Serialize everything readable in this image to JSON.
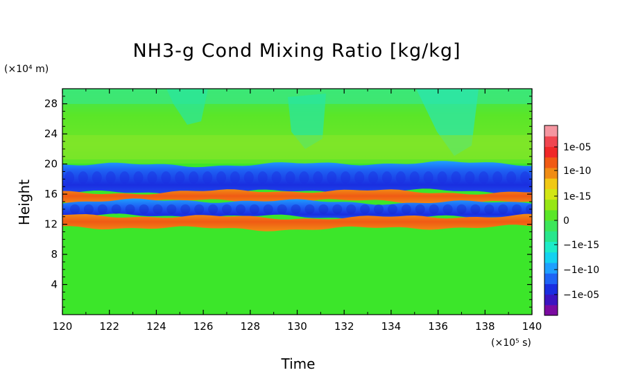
{
  "chart_data": {
    "type": "heatmap",
    "title": "NH3-g Cond Mixing Ratio [kg/kg]",
    "xlabel": "Time",
    "ylabel": "Height",
    "x_unit": "(×10⁵ s)",
    "y_unit": "(×10⁴ m)",
    "xlim": [
      120,
      140
    ],
    "ylim": [
      0,
      30
    ],
    "xticks": [
      120,
      122,
      124,
      126,
      128,
      130,
      132,
      134,
      136,
      138,
      140
    ],
    "yticks": [
      4,
      8,
      12,
      16,
      20,
      24,
      28
    ],
    "colorbar": {
      "labels": [
        "1e-05",
        "1e-10",
        "1e-15",
        "0",
        "−1e-15",
        "−1e-10",
        "−1e-05"
      ],
      "colors": [
        "#7a0aa0",
        "#3c14c0",
        "#1a2ee0",
        "#1e64f5",
        "#1ea0ff",
        "#14d2f0",
        "#1eebc8",
        "#28e68c",
        "#3ce65a",
        "#5ae628",
        "#96e614",
        "#d2e614",
        "#f0c814",
        "#f08c14",
        "#f05a14",
        "#f02828",
        "#f04650",
        "#f596a0"
      ]
    },
    "bands": [
      {
        "name": "upper negative band",
        "y_range": [
          16.3,
          20.0
        ],
        "sign": "negative"
      },
      {
        "name": "upper positive band",
        "y_range": [
          15.0,
          16.3
        ],
        "sign": "positive"
      },
      {
        "name": "lower negative band",
        "y_range": [
          13.0,
          15.0
        ],
        "sign": "negative"
      },
      {
        "name": "lower positive band",
        "y_range": [
          11.5,
          13.0
        ],
        "sign": "positive"
      }
    ],
    "grid": false
  }
}
